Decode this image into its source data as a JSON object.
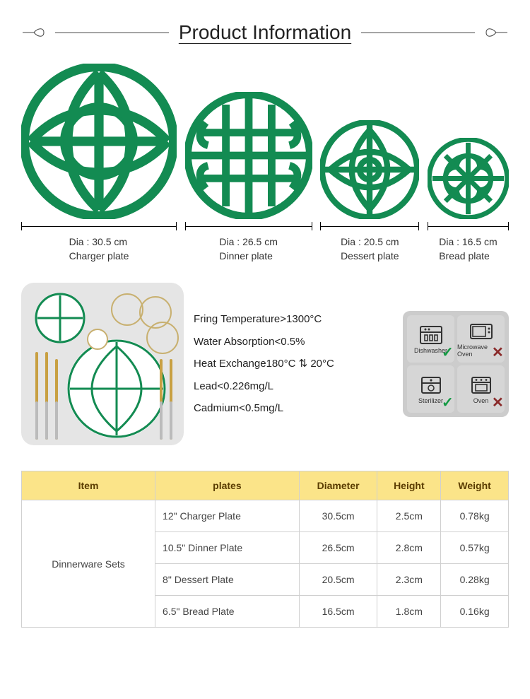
{
  "title": "Product Information",
  "plateColor": "#138b52",
  "plates": [
    {
      "sizePx": 220,
      "dia": "Dia : 30.5 cm",
      "name": "Charger plate"
    },
    {
      "sizePx": 180,
      "dia": "Dia : 26.5 cm",
      "name": "Dinner plate"
    },
    {
      "sizePx": 140,
      "dia": "Dia : 20.5 cm",
      "name": "Dessert plate"
    },
    {
      "sizePx": 115,
      "dia": "Dia : 16.5 cm",
      "name": "Bread plate"
    }
  ],
  "specs": {
    "l1": "Fring Temperature>1300°C",
    "l2": "Water Absorption<0.5%",
    "l3": "Heat Exchange180°C ⇅ 20°C",
    "l4": "Lead<0.226mg/L",
    "l5": "Cadmium<0.5mg/L"
  },
  "usage": {
    "dishwasher": "Dishwasher",
    "microwave": "Microwave Oven",
    "sterilizer": "Sterilizer",
    "oven": "Oven"
  },
  "table": {
    "headers": [
      "Item",
      "plates",
      "Diameter",
      "Height",
      "Weight"
    ],
    "item": "Dinnerware Sets",
    "rows": [
      [
        "12\" Charger Plate",
        "30.5cm",
        "2.5cm",
        "0.78kg"
      ],
      [
        "10.5\" Dinner Plate",
        "26.5cm",
        "2.8cm",
        "0.57kg"
      ],
      [
        "8\" Dessert Plate",
        "20.5cm",
        "2.3cm",
        "0.28kg"
      ],
      [
        "6.5\" Bread Plate",
        "16.5cm",
        "1.8cm",
        "0.16kg"
      ]
    ]
  }
}
